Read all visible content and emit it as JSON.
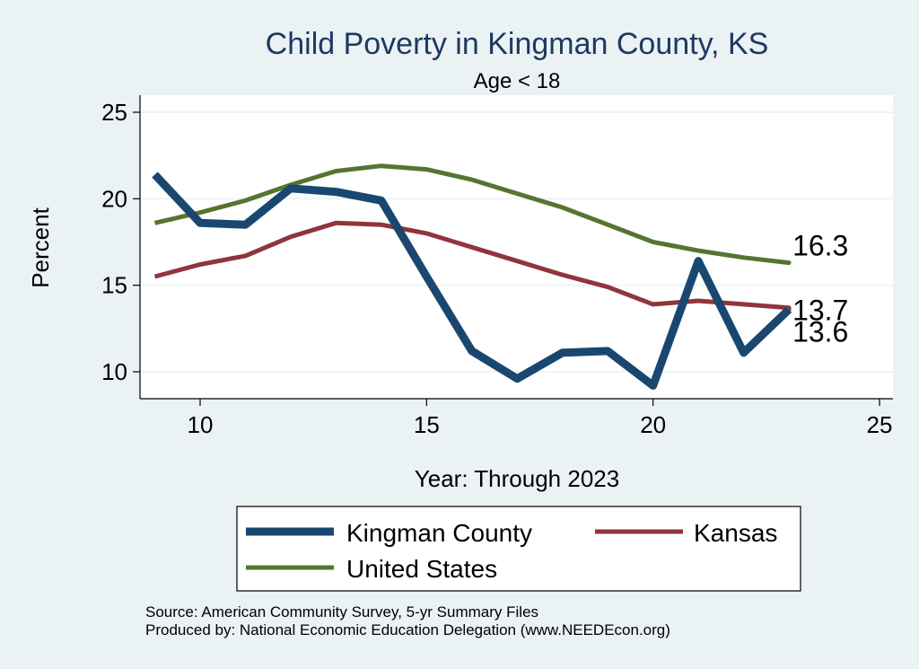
{
  "chart_data": {
    "type": "line",
    "title": "Child Poverty in Kingman County, KS",
    "subtitle": "Age < 18",
    "xlabel": "Year: Through 2023",
    "ylabel": "Percent",
    "xlim": [
      8.5,
      25
    ],
    "ylim": [
      8.5,
      25
    ],
    "xticks": [
      10,
      15,
      20,
      25
    ],
    "yticks": [
      10,
      15,
      20,
      25
    ],
    "grid": true,
    "x": [
      9,
      10,
      11,
      12,
      13,
      14,
      15,
      16,
      17,
      18,
      19,
      20,
      21,
      22,
      23
    ],
    "series": [
      {
        "name": "Kingman County",
        "color": "#1a476f",
        "values": [
          21.4,
          18.6,
          18.5,
          20.6,
          20.4,
          19.9,
          15.5,
          11.2,
          9.6,
          11.1,
          11.2,
          9.2,
          16.4,
          11.1,
          13.6
        ],
        "end_label": "13.6"
      },
      {
        "name": "Kansas",
        "color": "#90353b",
        "values": [
          15.5,
          16.2,
          16.7,
          17.8,
          18.6,
          18.5,
          18.0,
          17.2,
          16.4,
          15.6,
          14.9,
          13.9,
          14.1,
          13.9,
          13.7
        ],
        "end_label": "13.7"
      },
      {
        "name": "United States",
        "color": "#55752f",
        "values": [
          18.6,
          19.2,
          19.9,
          20.8,
          21.6,
          21.9,
          21.7,
          21.1,
          20.3,
          19.5,
          18.5,
          17.5,
          17.0,
          16.6,
          16.3
        ],
        "end_label": "16.3"
      }
    ],
    "legend": {
      "position": "bottom",
      "entries": [
        "Kingman County",
        "Kansas",
        "United States"
      ]
    },
    "notes": [
      "Source: American Community Survey, 5-yr Summary Files",
      "Produced by: National Economic Education Delegation (www.NEEDEcon.org)"
    ]
  }
}
